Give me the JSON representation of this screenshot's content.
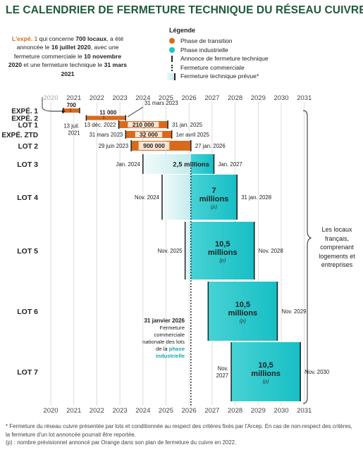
{
  "title": "LE CALENDRIER DE FERMETURE TECHNIQUE DU RÉSEAU CUIVRE",
  "intro": {
    "p1": "L'expé. 1",
    "p2": " qui concerne ",
    "p3": "700 locaux",
    "p4": ", a été annoncée le ",
    "p5": "16 juillet 2020",
    "p6": ", avec une fermeture commerciale le ",
    "p7": "10 novembre 2020",
    "p8": " et une fermeture technique le ",
    "p9": "31 mars 2021"
  },
  "legend": {
    "title": "Légende",
    "transition": "Phase de transition",
    "industrielle": "Phase industrielle",
    "annonce": "Annonce de fermeture technique",
    "commerciale": "Fermeture commerciale",
    "technique": "Fermeture technique prévue*"
  },
  "colors": {
    "transition": "#d96a1b",
    "industrial": "#21c3c8",
    "title": "#1f5a3a"
  },
  "side_note": "Les locaux français, comprenant logements et entreprises",
  "note_2026": {
    "title": "31 janvier 2026",
    "p1": "Fermeture commerciale nationale des lots de la ",
    "p2": "phase industrielle"
  },
  "footnote": {
    "l1": "* Fermeture du réseau cuivre présentée par lots et conditionnée au respect des critères fixés par l'Arcep. En cas de non-respect des critères, la fermeture d'un lot annoncée pourrait être reportée.",
    "l2": "(p) : nombre prévisionnel annoncé par Orange dans son plan de fermeture du cuivre en 2022."
  },
  "chart_data": {
    "type": "timeline",
    "x_ticks": [
      2020,
      2021,
      2022,
      2023,
      2024,
      2025,
      2026,
      2027,
      2028,
      2029,
      2030,
      2031
    ],
    "national_commercial_closure": 2026.08,
    "rows": [
      {
        "label": "EXPÉ. 1",
        "phase": "transition",
        "announce": 2020.54,
        "commercial": 2020.86,
        "end": 2021.25,
        "value": "700",
        "start_label": "",
        "end_label": "31 mars 2023",
        "value_above": true
      },
      {
        "label": "EXPÉ. 2",
        "phase": "transition",
        "announce": 2021.54,
        "commercial": 2022.3,
        "end": 2023.25,
        "value": "11 000",
        "start_label": "13 juil. 2021",
        "end_label": "",
        "value_above": true
      },
      {
        "label": "LOT 1",
        "phase": "transition",
        "announce": 2022.95,
        "commercial": 2024.05,
        "end": 2025.08,
        "value": "210 000",
        "start_label": "13 déc. 2022",
        "end_label": "31 jan. 2025",
        "value_above": false
      },
      {
        "label": "EXPÉ. ZTD",
        "phase": "transition",
        "announce": 2023.25,
        "commercial": 2024.05,
        "end": 2025.25,
        "value": "32 000",
        "start_label": "31 mars 2023",
        "end_label": "1er avril 2025",
        "value_above": false
      },
      {
        "label": "LOT 2",
        "phase": "transition",
        "announce": 2023.49,
        "commercial": 2025.08,
        "end": 2026.08,
        "value": "900 000",
        "start_label": "29 juin 2023",
        "end_label": "27 jan. 2026",
        "value_above": false
      },
      {
        "label": "LOT 3",
        "phase": "industrielle",
        "announce": 2024.0,
        "end": 2027.08,
        "value": "2,5 millions",
        "start_label": "Jan. 2024",
        "end_label": "Jan. 2027"
      },
      {
        "label": "LOT 4",
        "phase": "industrielle",
        "announce": 2024.83,
        "end": 2028.08,
        "value": "7 millions",
        "value_main": "7",
        "value_sub": "millions",
        "start_label": "Nov. 2024",
        "end_label": "31 jan. 2028"
      },
      {
        "label": "LOT 5",
        "phase": "industrielle",
        "announce": 2025.83,
        "end": 2028.83,
        "value": "10,5 millions",
        "value_main": "10,5",
        "value_sub": "millions",
        "start_label": "Nov. 2025",
        "end_label": "Nov. 2028"
      },
      {
        "label": "LOT 6",
        "phase": "industrielle",
        "announce": 2026.83,
        "end": 2029.83,
        "value": "10,5 millions",
        "value_main": "10,5",
        "value_sub": "millions",
        "start_label": "",
        "end_label": "Nov. 2029"
      },
      {
        "label": "LOT 7",
        "phase": "industrielle",
        "announce": 2027.83,
        "end": 2030.83,
        "value": "10,5 millions",
        "value_main": "10,5",
        "value_sub": "millions",
        "start_label": "Nov. 2027",
        "end_label": "Nov. 2030"
      }
    ],
    "p_label": "(p)"
  }
}
